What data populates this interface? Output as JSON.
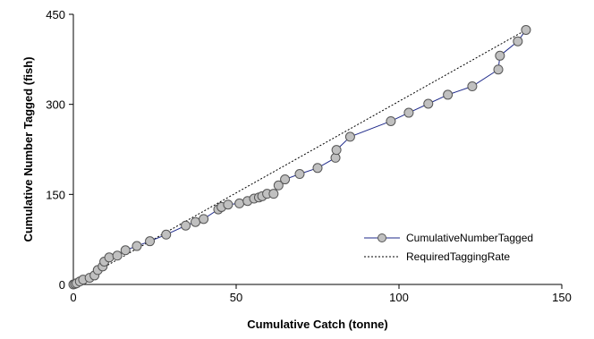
{
  "chart_data": {
    "type": "line",
    "xlabel": "Cumulative Catch (tonne)",
    "ylabel": "Cumulative Number Tagged (fish)",
    "xlim": [
      0,
      150
    ],
    "ylim": [
      0,
      450
    ],
    "xticks": [
      0,
      50,
      100,
      150
    ],
    "yticks": [
      0,
      150,
      300,
      450
    ],
    "x_tick_labels": [
      "0",
      "50",
      "100",
      "150"
    ],
    "y_tick_labels": [
      "0",
      "150",
      "300",
      "450"
    ],
    "grid": false,
    "legend_position": "bottom-right",
    "series": [
      {
        "name": "CumulativeNumberTagged",
        "color": "#1f2a8a",
        "marker_fill": "#c0c0c0",
        "points": [
          [
            0,
            0
          ],
          [
            0.5,
            1
          ],
          [
            1,
            2
          ],
          [
            2,
            5
          ],
          [
            3,
            8
          ],
          [
            5,
            11
          ],
          [
            6.5,
            15
          ],
          [
            7.5,
            24
          ],
          [
            9,
            30
          ],
          [
            9.5,
            38
          ],
          [
            11,
            45
          ],
          [
            13.5,
            48
          ],
          [
            16,
            57
          ],
          [
            19.5,
            64
          ],
          [
            23.5,
            72
          ],
          [
            28.5,
            83
          ],
          [
            34.5,
            98
          ],
          [
            37.5,
            104
          ],
          [
            40,
            109
          ],
          [
            44.5,
            125
          ],
          [
            45.5,
            129
          ],
          [
            47.5,
            133
          ],
          [
            51,
            135
          ],
          [
            53.5,
            139
          ],
          [
            55.5,
            143
          ],
          [
            57,
            145
          ],
          [
            58,
            147
          ],
          [
            59.5,
            151
          ],
          [
            61.5,
            151
          ],
          [
            63,
            165
          ],
          [
            65,
            175
          ],
          [
            69.5,
            184
          ],
          [
            75,
            194
          ],
          [
            80.5,
            211
          ],
          [
            80.8,
            224
          ],
          [
            85,
            246
          ],
          [
            97.5,
            272
          ],
          [
            103,
            286
          ],
          [
            109,
            301
          ],
          [
            115,
            316
          ],
          [
            122.5,
            330
          ],
          [
            130.5,
            358
          ],
          [
            131,
            381
          ],
          [
            136.5,
            405
          ],
          [
            139,
            424
          ]
        ]
      },
      {
        "name": "RequiredTaggingRate",
        "color": "#000000",
        "dash": "dotted",
        "points": [
          [
            0,
            0
          ],
          [
            139,
            424
          ]
        ]
      }
    ]
  }
}
